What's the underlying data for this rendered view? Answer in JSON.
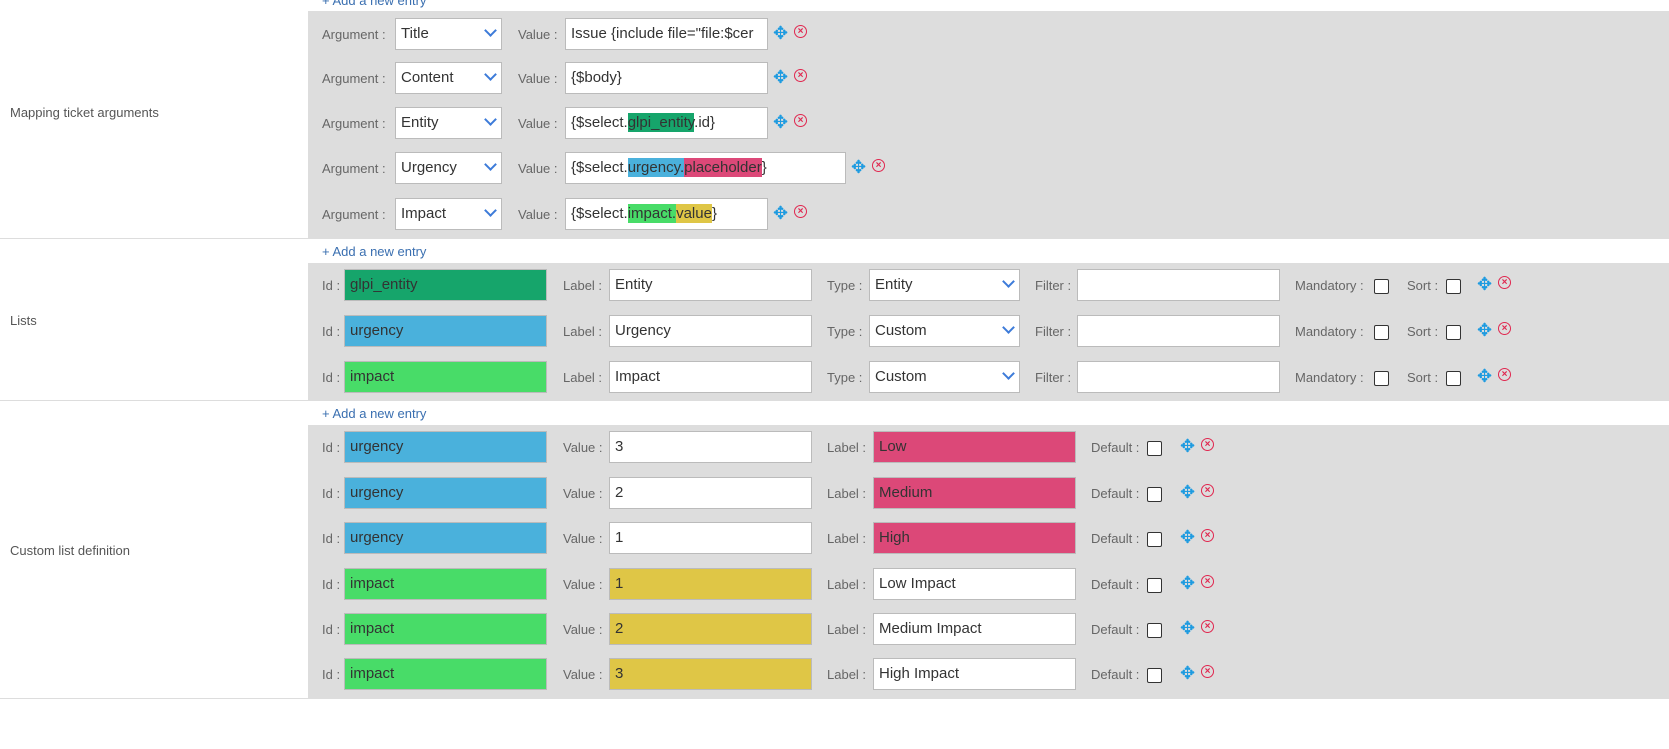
{
  "colors": {
    "entity": "#16a56b",
    "urgency": "#4ab1dc",
    "impact": "#48dc68",
    "placeholder": "#dc4878",
    "value": "#dfc646"
  },
  "common": {
    "add_entry": "+ Add a new entry",
    "argument": "Argument :",
    "value": "Value :",
    "id": "Id :",
    "label": "Label :",
    "type": "Type :",
    "filter": "Filter :",
    "mandatory": "Mandatory :",
    "sort": "Sort :",
    "default": "Default :"
  },
  "mapping": {
    "title": "Mapping ticket arguments",
    "rows": [
      {
        "argument": "Title",
        "value": [
          {
            "text": "Issue {include file=\"file:$cer",
            "color": ""
          }
        ]
      },
      {
        "argument": "Content",
        "value": [
          {
            "text": "{$body}",
            "color": ""
          }
        ]
      },
      {
        "argument": "Entity",
        "value": [
          {
            "text": "{$select.",
            "color": ""
          },
          {
            "text": "glpi_entity",
            "color": "#16a56b"
          },
          {
            "text": ".id}",
            "color": ""
          }
        ]
      },
      {
        "argument": "Urgency",
        "value": [
          {
            "text": "{$select.",
            "color": ""
          },
          {
            "text": "urgency.",
            "color": "#4ab1dc"
          },
          {
            "text": "placeholder",
            "color": "#dc4878"
          },
          {
            "text": "}",
            "color": ""
          }
        ]
      },
      {
        "argument": "Impact",
        "value": [
          {
            "text": "{$select.",
            "color": ""
          },
          {
            "text": "impact.",
            "color": "#48dc68"
          },
          {
            "text": "value",
            "color": "#dfc646"
          },
          {
            "text": "}",
            "color": ""
          }
        ]
      }
    ]
  },
  "lists": {
    "title": "Lists",
    "rows": [
      {
        "id": "glpi_entity",
        "id_color": "#16a56b",
        "label": "Entity",
        "type": "Entity",
        "filter": "",
        "mandatory": false,
        "sort": false
      },
      {
        "id": "urgency",
        "id_color": "#4ab1dc",
        "label": "Urgency",
        "type": "Custom",
        "filter": "",
        "mandatory": false,
        "sort": false
      },
      {
        "id": "impact",
        "id_color": "#48dc68",
        "label": "Impact",
        "type": "Custom",
        "filter": "",
        "mandatory": false,
        "sort": false
      }
    ]
  },
  "custom": {
    "title": "Custom list definition",
    "rows": [
      {
        "id": "urgency",
        "id_color": "#4ab1dc",
        "value": "3",
        "value_color": "",
        "label": "Low",
        "label_color": "#dc4878",
        "default": false
      },
      {
        "id": "urgency",
        "id_color": "#4ab1dc",
        "value": "2",
        "value_color": "",
        "label": "Medium",
        "label_color": "#dc4878",
        "default": false
      },
      {
        "id": "urgency",
        "id_color": "#4ab1dc",
        "value": "1",
        "value_color": "",
        "label": "High",
        "label_color": "#dc4878",
        "default": false
      },
      {
        "id": "impact",
        "id_color": "#48dc68",
        "value": "1",
        "value_color": "#dfc646",
        "label": "Low Impact",
        "label_color": "",
        "default": false
      },
      {
        "id": "impact",
        "id_color": "#48dc68",
        "value": "2",
        "value_color": "#dfc646",
        "label": "Medium Impact",
        "label_color": "",
        "default": false
      },
      {
        "id": "impact",
        "id_color": "#48dc68",
        "value": "3",
        "value_color": "#dfc646",
        "label": "High Impact",
        "label_color": "",
        "default": false
      }
    ]
  }
}
